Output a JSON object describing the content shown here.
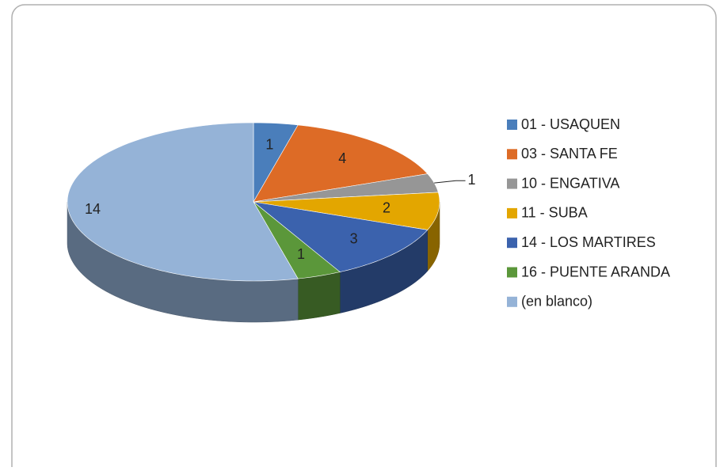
{
  "chart_data": {
    "type": "pie3d",
    "categories": [
      "01 - USAQUEN",
      "03 - SANTA FE",
      "10 - ENGATIVA",
      "11 - SUBA",
      "14 - LOS MARTIRES",
      "16 - PUENTE ARANDA",
      "(en blanco)"
    ],
    "values": [
      1,
      4,
      1,
      2,
      3,
      1,
      14
    ],
    "colors": [
      "#4a7ebb",
      "#dd6b26",
      "#969696",
      "#e3a600",
      "#3b62ad",
      "#5b973a",
      "#95b3d7"
    ],
    "legend": "right"
  }
}
